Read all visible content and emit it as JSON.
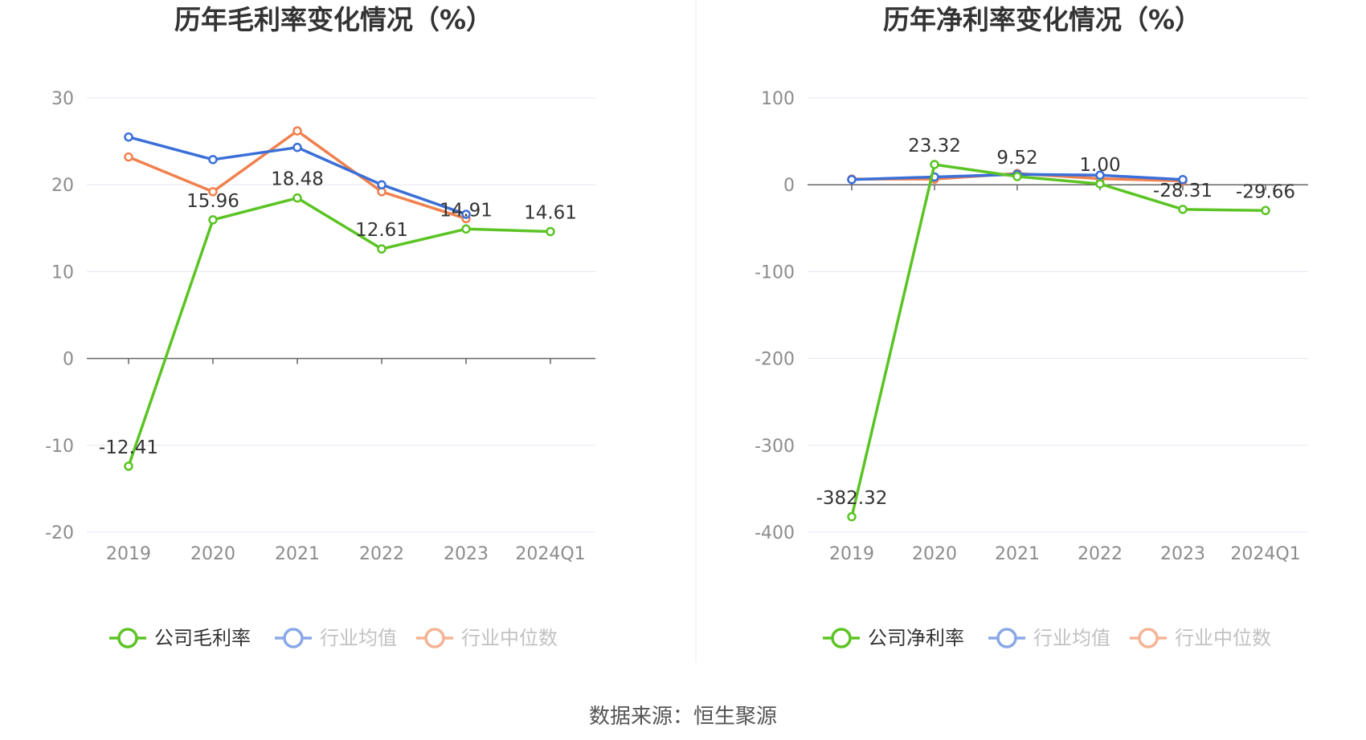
{
  "colors": {
    "company": "#5bc424",
    "average": "#3b6fd8",
    "median": "#f0814e",
    "grid": "#e3e8f3",
    "axis_text": "#8c8c8c",
    "title": "#333333",
    "label": "#333333"
  },
  "legend_labels": {
    "left_company": "公司毛利率",
    "right_company": "公司净利率",
    "average": "行业均值",
    "median": "行业中位数"
  },
  "source_text": "数据来源：恒生聚源",
  "chart_data": [
    {
      "type": "line",
      "title": "历年毛利率变化情况（%）",
      "categories": [
        "2019",
        "2020",
        "2021",
        "2022",
        "2023",
        "2024Q1"
      ],
      "ylim": [
        -20,
        30
      ],
      "yticks": [
        30,
        20,
        10,
        0,
        -10,
        -20
      ],
      "ytick_labels": [
        "30",
        "20",
        "10",
        "0",
        "-10",
        "-20"
      ],
      "grid": true,
      "legend_position": "bottom",
      "series": [
        {
          "name": "公司毛利率",
          "values": [
            -12.41,
            15.96,
            18.48,
            12.61,
            14.91,
            14.61
          ],
          "labels": [
            "-12.41",
            "15.96",
            "18.48",
            "12.61",
            "14.91",
            "14.61"
          ]
        },
        {
          "name": "行业均值",
          "values": [
            25.5,
            22.9,
            24.3,
            20.0,
            16.6,
            null
          ]
        },
        {
          "name": "行业中位数",
          "values": [
            23.2,
            19.2,
            26.2,
            19.2,
            16.1,
            null
          ]
        }
      ]
    },
    {
      "type": "line",
      "title": "历年净利率变化情况（%）",
      "categories": [
        "2019",
        "2020",
        "2021",
        "2022",
        "2023",
        "2024Q1"
      ],
      "ylim": [
        -400,
        100
      ],
      "yticks": [
        100,
        0,
        -100,
        -200,
        -300,
        -400
      ],
      "ytick_labels": [
        "100",
        "0",
        "-100",
        "-200",
        "-300",
        "-400"
      ],
      "grid": true,
      "legend_position": "bottom",
      "series": [
        {
          "name": "公司净利率",
          "values": [
            -382.32,
            23.32,
            9.52,
            1.0,
            -28.31,
            -29.66
          ],
          "labels": [
            "-382.32",
            "23.32",
            "9.52",
            "1.00",
            "-28.31",
            "-29.66"
          ]
        },
        {
          "name": "行业均值",
          "values": [
            6.0,
            9.0,
            12.0,
            11.0,
            6.0,
            null
          ]
        },
        {
          "name": "行业中位数",
          "values": [
            6.5,
            6.5,
            13.0,
            7.0,
            4.5,
            null
          ]
        }
      ]
    }
  ]
}
